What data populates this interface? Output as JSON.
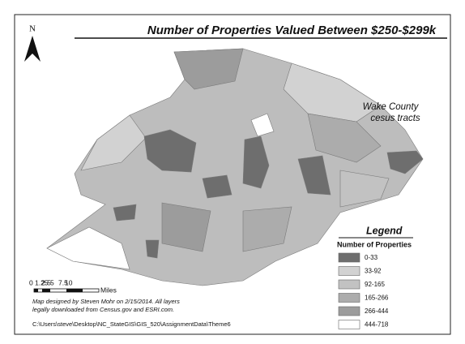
{
  "header": {
    "title": "Number of Properties Valued Between $250-$299k",
    "north": "N"
  },
  "annotation": {
    "line1": "Wake County",
    "line2": "cesus tracts"
  },
  "legend": {
    "title": "Legend",
    "subtitle": "Number of Properties",
    "items": [
      {
        "label": "0-33",
        "color": "#6e6e6e"
      },
      {
        "label": "33-92",
        "color": "#d2d2d2"
      },
      {
        "label": "92-165",
        "color": "#c2c2c2"
      },
      {
        "label": "165-266",
        "color": "#acacac"
      },
      {
        "label": "266-444",
        "color": "#9c9c9c"
      },
      {
        "label": "444-718",
        "color": "#ffffff"
      }
    ]
  },
  "scale_bar": {
    "labels": [
      "0",
      "1.25",
      "2.5",
      "5",
      "7.5",
      "10"
    ],
    "unit": "Miles"
  },
  "credits": {
    "line1": "Map designed by Steven Mohr on 2/15/2014. All layers",
    "line2": "legally downloaded from Census.gov and ESRI.com."
  },
  "path": "C:\\Users\\steve\\Desktop\\NC_StateGIS\\GIS_520\\AssignmentData\\Theme6"
}
